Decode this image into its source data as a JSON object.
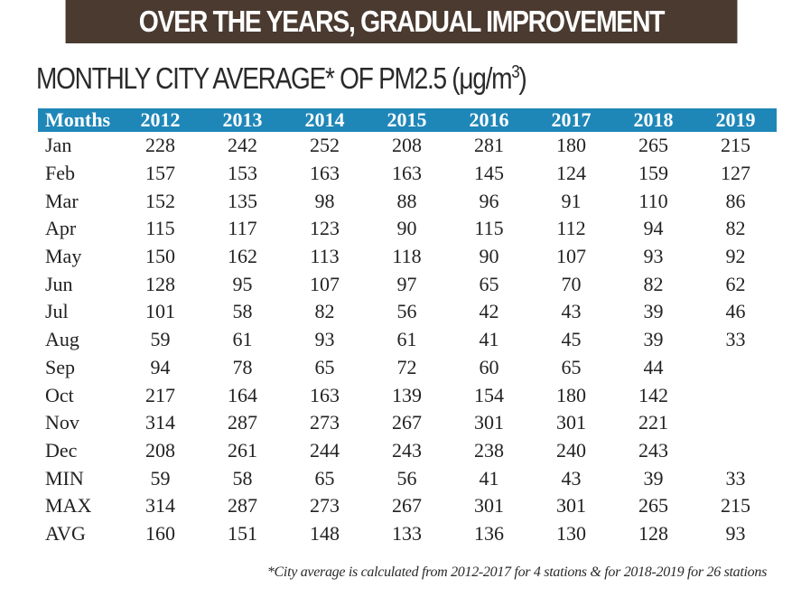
{
  "banner": {
    "title": "OVER THE YEARS, GRADUAL IMPROVEMENT"
  },
  "chart_data": {
    "type": "table",
    "title": "MONTHLY CITY AVERAGE* OF PM2.5 (μg/m",
    "title_unit_superscript": "3",
    "title_close": ")",
    "columns": [
      "Months",
      "2012",
      "2013",
      "2014",
      "2015",
      "2016",
      "2017",
      "2018",
      "2019"
    ],
    "rows": [
      [
        "Jan",
        "228",
        "242",
        "252",
        "208",
        "281",
        "180",
        "265",
        "215"
      ],
      [
        "Feb",
        "157",
        "153",
        "163",
        "163",
        "145",
        "124",
        "159",
        "127"
      ],
      [
        "Mar",
        "152",
        "135",
        "98",
        "88",
        "96",
        "91",
        "110",
        "86"
      ],
      [
        "Apr",
        "115",
        "117",
        "123",
        "90",
        "115",
        "112",
        "94",
        "82"
      ],
      [
        "May",
        "150",
        "162",
        "113",
        "118",
        "90",
        "107",
        "93",
        "92"
      ],
      [
        "Jun",
        "128",
        "95",
        "107",
        "97",
        "65",
        "70",
        "82",
        "62"
      ],
      [
        "Jul",
        "101",
        "58",
        "82",
        "56",
        "42",
        "43",
        "39",
        "46"
      ],
      [
        "Aug",
        "59",
        "61",
        "93",
        "61",
        "41",
        "45",
        "39",
        "33"
      ],
      [
        "Sep",
        "94",
        "78",
        "65",
        "72",
        "60",
        "65",
        "44",
        ""
      ],
      [
        "Oct",
        "217",
        "164",
        "163",
        "139",
        "154",
        "180",
        "142",
        ""
      ],
      [
        "Nov",
        "314",
        "287",
        "273",
        "267",
        "301",
        "301",
        "221",
        ""
      ],
      [
        "Dec",
        "208",
        "261",
        "244",
        "243",
        "238",
        "240",
        "243",
        ""
      ],
      [
        "MIN",
        "59",
        "58",
        "65",
        "56",
        "41",
        "43",
        "39",
        "33"
      ],
      [
        "MAX",
        "314",
        "287",
        "273",
        "267",
        "301",
        "301",
        "265",
        "215"
      ],
      [
        "AVG",
        "160",
        "151",
        "148",
        "133",
        "136",
        "130",
        "128",
        "93"
      ]
    ],
    "footnote": "*City average is calculated from 2012-2017 for 4 stations & for 2018-2019 for 26 stations"
  },
  "colors": {
    "banner_bg": "#4a3a30",
    "header_bg": "#1f87b8",
    "text": "#222222"
  }
}
